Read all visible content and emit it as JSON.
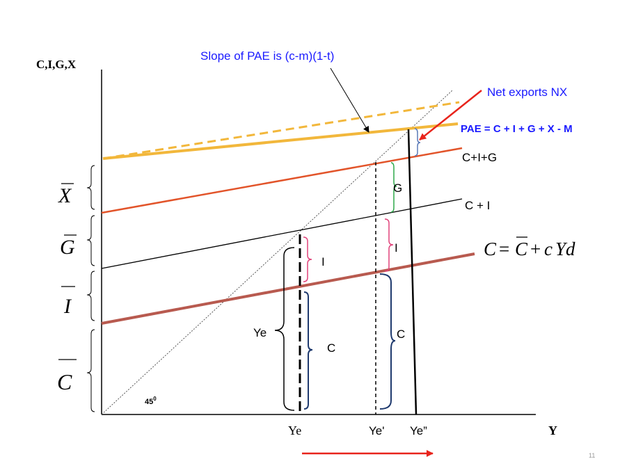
{
  "axes": {
    "y_label": "C,I,G,X",
    "x_label": "Y",
    "angle_label": "45",
    "angle_sup": "0"
  },
  "annotations": {
    "slope": "Slope of  PAE is (c-m)(1-t)",
    "net_exports": "Net exports  NX",
    "pae": "PAE = C + I + G +  X - M"
  },
  "lines": {
    "cig": "C+I+G",
    "ci": "C + I",
    "consumption": {
      "lhs": "C",
      "eq": "=",
      "cbar": "C",
      "plus": "+",
      "c": "c",
      "yd": "Yd"
    }
  },
  "intercepts": {
    "x": "X",
    "g": "G",
    "i": "I",
    "c": "C"
  },
  "gaps": {
    "i_left": "I",
    "c_left": "C",
    "ye_brace": "Ye",
    "g_mid": "G",
    "i_mid": "I",
    "c_mid": "C"
  },
  "x_ticks": [
    "Ye",
    "Ye'",
    "Ye”"
  ],
  "page_number": "11",
  "colors": {
    "pae": "#f2b73b",
    "cig": "#e2542a",
    "ci": "#000000",
    "consumption": "#b85a4f",
    "annotation_blue": "#1a1aff",
    "arrow_red": "#e8241c",
    "brace_navy": "#1f3a6e",
    "brace_pink": "#e0427a",
    "brace_green": "#2ea84a",
    "brace_steel": "#5b7bb8"
  }
}
